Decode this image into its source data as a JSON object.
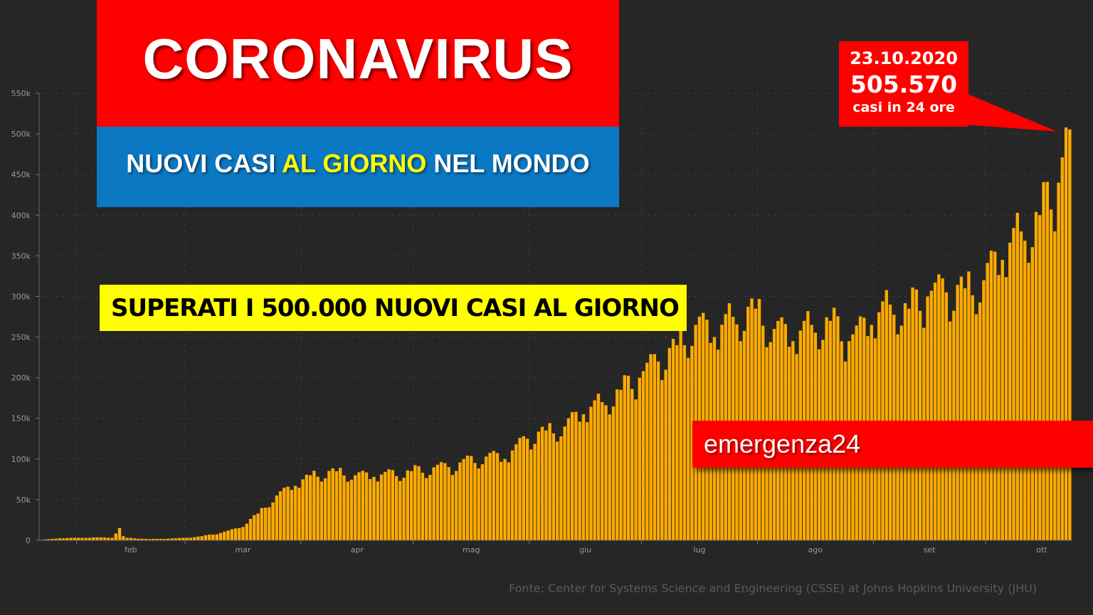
{
  "header": {
    "title": "CORONAVIRUS",
    "subtitle_part1": "NUOVI CASI ",
    "subtitle_highlight": "AL GIORNO",
    "subtitle_part2": " NEL MONDO"
  },
  "headline": "SUPERATI I 500.000 NUOVI CASI AL GIORNO",
  "callout": {
    "date": "23.10.2020",
    "value": "505.570",
    "note": "casi in 24 ore"
  },
  "brand": "emergenza24",
  "source": "Fonte: Center for Systems Science and Engineering (CSSE) at Johns Hopkins University (JHU)",
  "colors": {
    "background": "#262626",
    "bar": "#ffab00",
    "title_red": "#ff0000",
    "subtitle_blue": "#0b78c3",
    "highlight_yellow": "#ffff00"
  },
  "chart_data": {
    "type": "bar",
    "title": "",
    "xlabel": "",
    "ylabel": "",
    "ylim": [
      0,
      550000
    ],
    "yticks": [
      0,
      50000,
      100000,
      150000,
      200000,
      250000,
      300000,
      350000,
      400000,
      450000,
      500000,
      550000
    ],
    "ytick_labels": [
      "0",
      "50k",
      "100k",
      "150k",
      "200k",
      "250k",
      "300k",
      "350k",
      "400k",
      "450k",
      "500k",
      "550k"
    ],
    "xtick_labels": [
      "feb",
      "mar",
      "apr",
      "mag",
      "giu",
      "lug",
      "ago",
      "set",
      "ott"
    ],
    "xtick_dates": [
      "2020-02-01",
      "2020-03-01",
      "2020-04-01",
      "2020-05-01",
      "2020-06-01",
      "2020-07-01",
      "2020-08-01",
      "2020-09-01",
      "2020-10-01"
    ],
    "date_start": "2020-01-22",
    "date_end": "2020-10-23",
    "grid": true,
    "anchor_values": [
      [
        "2020-01-22",
        500
      ],
      [
        "2020-01-27",
        2500
      ],
      [
        "2020-02-01",
        3000
      ],
      [
        "2020-02-05",
        3500
      ],
      [
        "2020-02-10",
        3000
      ],
      [
        "2020-02-12",
        15000
      ],
      [
        "2020-02-13",
        5000
      ],
      [
        "2020-02-14",
        3000
      ],
      [
        "2020-02-20",
        1500
      ],
      [
        "2020-02-25",
        2000
      ],
      [
        "2020-03-01",
        3000
      ],
      [
        "2020-03-05",
        5000
      ],
      [
        "2020-03-10",
        9000
      ],
      [
        "2020-03-15",
        15000
      ],
      [
        "2020-03-20",
        33000
      ],
      [
        "2020-03-25",
        55000
      ],
      [
        "2020-03-30",
        67000
      ],
      [
        "2020-04-03",
        80000
      ],
      [
        "2020-04-10",
        85000
      ],
      [
        "2020-04-15",
        80000
      ],
      [
        "2020-04-20",
        78000
      ],
      [
        "2020-04-30",
        85000
      ],
      [
        "2020-05-10",
        90000
      ],
      [
        "2020-05-20",
        103000
      ],
      [
        "2020-05-25",
        100000
      ],
      [
        "2020-05-31",
        125000
      ],
      [
        "2020-06-05",
        135000
      ],
      [
        "2020-06-10",
        140000
      ],
      [
        "2020-06-15",
        155000
      ],
      [
        "2020-06-20",
        170000
      ],
      [
        "2020-06-25",
        185000
      ],
      [
        "2020-06-30",
        200000
      ],
      [
        "2020-07-05",
        220000
      ],
      [
        "2020-07-10",
        240000
      ],
      [
        "2020-07-15",
        265000
      ],
      [
        "2020-07-20",
        250000
      ],
      [
        "2020-07-25",
        275000
      ],
      [
        "2020-07-31",
        285000
      ],
      [
        "2020-08-05",
        260000
      ],
      [
        "2020-08-10",
        245000
      ],
      [
        "2020-08-15",
        265000
      ],
      [
        "2020-08-20",
        270000
      ],
      [
        "2020-08-25",
        245000
      ],
      [
        "2020-08-31",
        265000
      ],
      [
        "2020-09-05",
        290000
      ],
      [
        "2020-09-10",
        285000
      ],
      [
        "2020-09-15",
        300000
      ],
      [
        "2020-09-20",
        305000
      ],
      [
        "2020-09-25",
        310000
      ],
      [
        "2020-09-30",
        320000
      ],
      [
        "2020-10-05",
        345000
      ],
      [
        "2020-10-10",
        380000
      ],
      [
        "2020-10-15",
        400000
      ],
      [
        "2020-10-20",
        440000
      ],
      [
        "2020-10-23",
        505570
      ]
    ],
    "weekly_pattern": [
      1.02,
      1.05,
      1.08,
      1.06,
      0.96,
      0.88,
      0.92
    ]
  }
}
